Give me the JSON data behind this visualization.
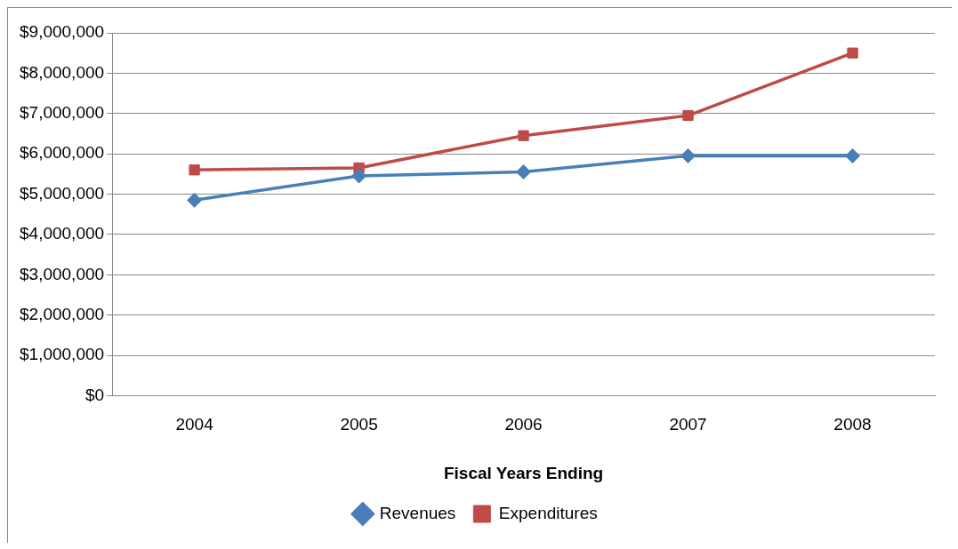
{
  "chart_data": {
    "type": "line",
    "xlabel": "Fiscal Years Ending",
    "categories": [
      "2004",
      "2005",
      "2006",
      "2007",
      "2008"
    ],
    "series": [
      {
        "name": "Revenues",
        "color": "#4a7ebb",
        "marker": "diamond",
        "values": [
          4850000,
          5450000,
          5550000,
          5950000,
          5950000
        ]
      },
      {
        "name": "Expenditures",
        "color": "#be4b48",
        "marker": "square",
        "values": [
          5600000,
          5650000,
          6450000,
          6950000,
          8500000
        ]
      }
    ],
    "ylim": [
      0,
      9000000
    ],
    "yticks": [
      {
        "value": 0,
        "label": "$0"
      },
      {
        "value": 1000000,
        "label": "$1,000,000"
      },
      {
        "value": 2000000,
        "label": "$2,000,000"
      },
      {
        "value": 3000000,
        "label": "$3,000,000"
      },
      {
        "value": 4000000,
        "label": "$4,000,000"
      },
      {
        "value": 5000000,
        "label": "$5,000,000"
      },
      {
        "value": 6000000,
        "label": "$6,000,000"
      },
      {
        "value": 7000000,
        "label": "$7,000,000"
      },
      {
        "value": 8000000,
        "label": "$8,000,000"
      },
      {
        "value": 9000000,
        "label": "$9,000,000"
      }
    ],
    "grid": "y",
    "legend": "bottom"
  }
}
